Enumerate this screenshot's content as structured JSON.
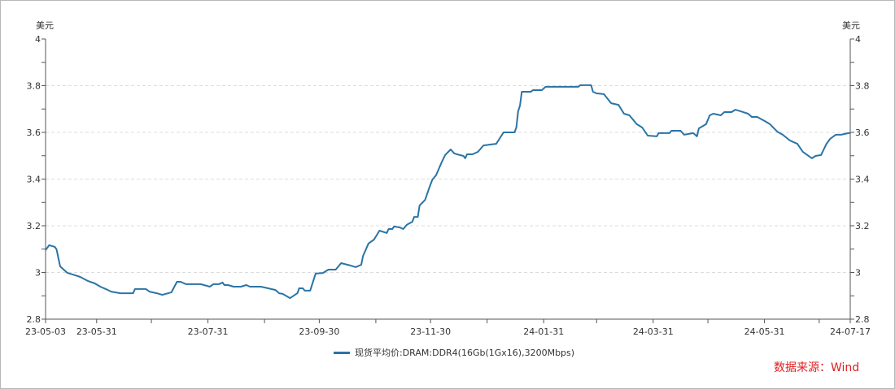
{
  "chart_data": {
    "type": "line",
    "title": "",
    "y_unit_left": "美元",
    "y_unit_right": "美元",
    "ylim": [
      2.8,
      4
    ],
    "yticks": [
      2.8,
      3,
      3.2,
      3.4,
      3.6,
      3.8,
      4
    ],
    "ytick_labels": [
      "2.8",
      "3",
      "3.2",
      "3.4",
      "3.6",
      "3.8",
      "4"
    ],
    "grid": "horizontal-dashed",
    "x_unit": "days since 2023-05-03",
    "xlim": [
      0,
      441
    ],
    "xticks": [
      0,
      28,
      58,
      89,
      120,
      150,
      181,
      211,
      242,
      273,
      302,
      333,
      363,
      394,
      424,
      441
    ],
    "xtick_labels": [
      {
        "x": 0,
        "label": "23-05-03"
      },
      {
        "x": 28,
        "label": "23-05-31"
      },
      {
        "x": 89,
        "label": "23-07-31"
      },
      {
        "x": 150,
        "label": "23-09-30"
      },
      {
        "x": 211,
        "label": "23-11-30"
      },
      {
        "x": 273,
        "label": "24-01-31"
      },
      {
        "x": 333,
        "label": "24-03-31"
      },
      {
        "x": 394,
        "label": "24-05-31"
      },
      {
        "x": 441,
        "label": "24-07-17"
      }
    ],
    "legend_position": "bottom",
    "series": [
      {
        "name": "现货平均价:DRAM:DDR4(16Gb(1Gx16),3200Mbps)",
        "color": "#2a74a6",
        "points": [
          [
            0,
            3.096
          ],
          [
            2,
            3.117
          ],
          [
            5,
            3.11
          ],
          [
            6,
            3.099
          ],
          [
            8,
            3.026
          ],
          [
            12,
            2.998
          ],
          [
            15,
            2.991
          ],
          [
            19,
            2.981
          ],
          [
            23,
            2.964
          ],
          [
            27,
            2.953
          ],
          [
            30,
            2.939
          ],
          [
            33,
            2.929
          ],
          [
            36,
            2.918
          ],
          [
            41,
            2.911
          ],
          [
            48,
            2.911
          ],
          [
            49,
            2.929
          ],
          [
            55,
            2.929
          ],
          [
            57,
            2.918
          ],
          [
            61,
            2.911
          ],
          [
            64,
            2.904
          ],
          [
            69,
            2.915
          ],
          [
            72,
            2.96
          ],
          [
            74,
            2.96
          ],
          [
            77,
            2.95
          ],
          [
            85,
            2.95
          ],
          [
            90,
            2.939
          ],
          [
            92,
            2.95
          ],
          [
            95,
            2.95
          ],
          [
            97,
            2.957
          ],
          [
            98,
            2.946
          ],
          [
            100,
            2.946
          ],
          [
            103,
            2.939
          ],
          [
            107,
            2.939
          ],
          [
            110,
            2.946
          ],
          [
            112,
            2.939
          ],
          [
            118,
            2.939
          ],
          [
            122,
            2.932
          ],
          [
            126,
            2.925
          ],
          [
            128,
            2.911
          ],
          [
            130,
            2.908
          ],
          [
            134,
            2.89
          ],
          [
            138,
            2.911
          ],
          [
            139,
            2.932
          ],
          [
            141,
            2.932
          ],
          [
            142,
            2.922
          ],
          [
            145,
            2.922
          ],
          [
            148,
            2.995
          ],
          [
            152,
            2.998
          ],
          [
            155,
            3.012
          ],
          [
            159,
            3.012
          ],
          [
            162,
            3.04
          ],
          [
            167,
            3.03
          ],
          [
            170,
            3.023
          ],
          [
            173,
            3.033
          ],
          [
            174,
            3.071
          ],
          [
            177,
            3.124
          ],
          [
            180,
            3.141
          ],
          [
            183,
            3.179
          ],
          [
            187,
            3.169
          ],
          [
            188,
            3.186
          ],
          [
            190,
            3.186
          ],
          [
            191,
            3.197
          ],
          [
            194,
            3.193
          ],
          [
            196,
            3.186
          ],
          [
            198,
            3.204
          ],
          [
            201,
            3.217
          ],
          [
            202,
            3.238
          ],
          [
            204,
            3.238
          ],
          [
            205,
            3.287
          ],
          [
            208,
            3.311
          ],
          [
            210,
            3.357
          ],
          [
            212,
            3.398
          ],
          [
            214,
            3.416
          ],
          [
            217,
            3.471
          ],
          [
            219,
            3.503
          ],
          [
            222,
            3.527
          ],
          [
            224,
            3.51
          ],
          [
            227,
            3.503
          ],
          [
            229,
            3.499
          ],
          [
            230,
            3.489
          ],
          [
            231,
            3.506
          ],
          [
            234,
            3.506
          ],
          [
            237,
            3.517
          ],
          [
            240,
            3.544
          ],
          [
            244,
            3.548
          ],
          [
            247,
            3.551
          ],
          [
            251,
            3.6
          ],
          [
            257,
            3.6
          ],
          [
            258,
            3.621
          ],
          [
            259,
            3.69
          ],
          [
            260,
            3.715
          ],
          [
            261,
            3.774
          ],
          [
            266,
            3.774
          ],
          [
            267,
            3.781
          ],
          [
            272,
            3.781
          ],
          [
            274,
            3.795
          ],
          [
            292,
            3.795
          ],
          [
            293,
            3.802
          ],
          [
            299,
            3.802
          ],
          [
            300,
            3.774
          ],
          [
            302,
            3.767
          ],
          [
            306,
            3.764
          ],
          [
            310,
            3.725
          ],
          [
            314,
            3.718
          ],
          [
            317,
            3.68
          ],
          [
            320,
            3.673
          ],
          [
            324,
            3.635
          ],
          [
            327,
            3.621
          ],
          [
            330,
            3.586
          ],
          [
            335,
            3.583
          ],
          [
            336,
            3.597
          ],
          [
            342,
            3.597
          ],
          [
            343,
            3.607
          ],
          [
            348,
            3.607
          ],
          [
            350,
            3.59
          ],
          [
            355,
            3.597
          ],
          [
            357,
            3.583
          ],
          [
            358,
            3.617
          ],
          [
            362,
            3.635
          ],
          [
            364,
            3.673
          ],
          [
            366,
            3.68
          ],
          [
            370,
            3.673
          ],
          [
            372,
            3.687
          ],
          [
            376,
            3.687
          ],
          [
            378,
            3.697
          ],
          [
            381,
            3.69
          ],
          [
            385,
            3.68
          ],
          [
            387,
            3.666
          ],
          [
            390,
            3.666
          ],
          [
            394,
            3.649
          ],
          [
            397,
            3.635
          ],
          [
            401,
            3.603
          ],
          [
            404,
            3.59
          ],
          [
            408,
            3.565
          ],
          [
            412,
            3.551
          ],
          [
            415,
            3.517
          ],
          [
            420,
            3.489
          ],
          [
            422,
            3.499
          ],
          [
            425,
            3.503
          ],
          [
            428,
            3.551
          ],
          [
            430,
            3.572
          ],
          [
            433,
            3.59
          ],
          [
            436,
            3.59
          ],
          [
            440,
            3.597
          ],
          [
            441,
            3.597
          ]
        ]
      }
    ]
  },
  "source_note": "数据来源：Wind"
}
